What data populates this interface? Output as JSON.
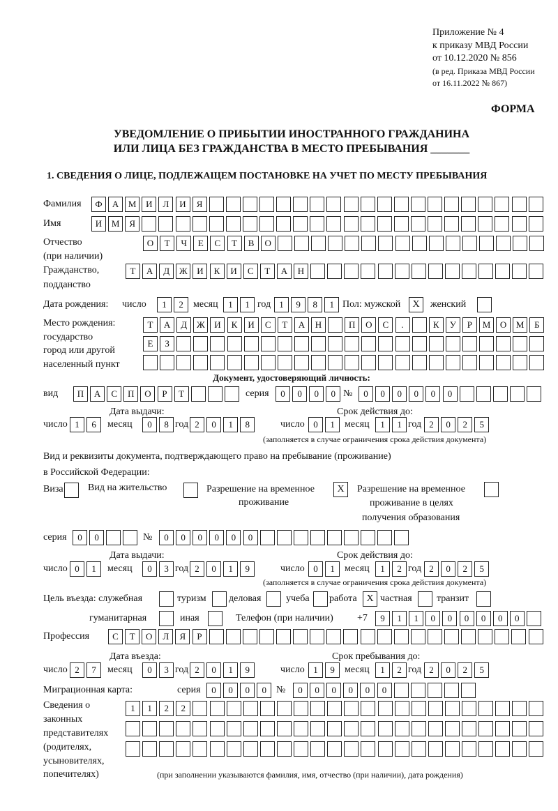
{
  "header": {
    "appendix": "Приложение № 4",
    "order": "к приказу МВД России",
    "order_date": "от 10.12.2020 № 856",
    "revision": "(в ред. Приказа МВД России",
    "revision_date": "от 16.11.2022 № 867)",
    "form_label": "ФОРМА"
  },
  "title": {
    "line1": "УВЕДОМЛЕНИЕ О ПРИБЫТИИ ИНОСТРАННОГО ГРАЖДАНИНА",
    "line2": "ИЛИ ЛИЦА БЕЗ ГРАЖДАНСТВА В МЕСТО ПРЕБЫВАНИЯ _______"
  },
  "section1": {
    "heading": "1. СВЕДЕНИЯ О ЛИЦЕ, ПОДЛЕЖАЩЕМ ПОСТАНОВКЕ НА УЧЕТ ПО МЕСТУ ПРЕБЫВАНИЯ"
  },
  "person": {
    "surname_label": "Фамилия",
    "surname": [
      "Ф",
      "А",
      "М",
      "И",
      "Л",
      "И",
      "Я",
      "",
      "",
      "",
      "",
      "",
      "",
      "",
      "",
      "",
      "",
      "",
      "",
      "",
      "",
      "",
      "",
      "",
      "",
      "",
      ""
    ],
    "name_label": "Имя",
    "name": [
      "И",
      "М",
      "Я",
      "",
      "",
      "",
      "",
      "",
      "",
      "",
      "",
      "",
      "",
      "",
      "",
      "",
      "",
      "",
      "",
      "",
      "",
      "",
      "",
      "",
      "",
      "",
      ""
    ],
    "patronymic_label": "Отчество",
    "patronymic_note": "(при наличии)",
    "patronymic": [
      "О",
      "Т",
      "Ч",
      "Е",
      "С",
      "Т",
      "В",
      "О",
      "",
      "",
      "",
      "",
      "",
      "",
      "",
      "",
      "",
      "",
      "",
      "",
      "",
      "",
      "",
      ""
    ],
    "citizenship_label1": "Гражданство,",
    "citizenship_label2": "подданство",
    "citizenship": [
      "Т",
      "А",
      "Д",
      "Ж",
      "И",
      "К",
      "И",
      "С",
      "Т",
      "А",
      "Н",
      "",
      "",
      "",
      "",
      "",
      "",
      "",
      "",
      "",
      "",
      "",
      "",
      "",
      ""
    ]
  },
  "birth_date": {
    "label": "Дата рождения:",
    "day_label": "число",
    "day": [
      "1",
      "2"
    ],
    "month_label": "месяц",
    "month": [
      "1",
      "1"
    ],
    "year_label": "год",
    "year": [
      "1",
      "9",
      "8",
      "1"
    ],
    "sex_label": "Пол: мужской",
    "male": "X",
    "female_label": "женский",
    "female": ""
  },
  "birth_place": {
    "label1": "Место рождения:",
    "label2": "государство",
    "label3": "город или другой",
    "label4": "населенный пункт",
    "row1": [
      "Т",
      "А",
      "Д",
      "Ж",
      "И",
      "К",
      "И",
      "С",
      "Т",
      "А",
      "Н",
      "",
      "П",
      "О",
      "С",
      ".",
      "",
      "К",
      "У",
      "Р",
      "М",
      "О",
      "М",
      "Б"
    ],
    "row2": [
      "Е",
      "З",
      "",
      "",
      "",
      "",
      "",
      "",
      "",
      "",
      "",
      "",
      "",
      "",
      "",
      "",
      "",
      "",
      "",
      "",
      "",
      "",
      "",
      ""
    ],
    "row3": [
      "",
      "",
      "",
      "",
      "",
      "",
      "",
      "",
      "",
      "",
      "",
      "",
      "",
      "",
      "",
      "",
      "",
      "",
      "",
      "",
      "",
      "",
      "",
      ""
    ]
  },
  "identity_doc": {
    "heading": "Документ, удостоверяющий личность:",
    "type_label": "вид",
    "type": [
      "П",
      "А",
      "С",
      "П",
      "О",
      "Р",
      "Т",
      "",
      "",
      ""
    ],
    "series_label": "серия",
    "series": [
      "0",
      "0",
      "0",
      "0"
    ],
    "number_label": "№",
    "number": [
      "0",
      "0",
      "0",
      "0",
      "0",
      "0",
      "",
      "",
      "",
      "",
      ""
    ],
    "issue_label": "Дата выдачи:",
    "valid_label": "Срок действия до:",
    "day_label": "число",
    "month_label": "месяц",
    "year_label": "год",
    "issue_day": [
      "1",
      "6"
    ],
    "issue_month": [
      "0",
      "8"
    ],
    "issue_year": [
      "2",
      "0",
      "1",
      "8"
    ],
    "valid_day": [
      "0",
      "1"
    ],
    "valid_month": [
      "1",
      "1"
    ],
    "valid_year": [
      "2",
      "0",
      "2",
      "5"
    ],
    "note": "(заполняется в случае ограничения срока действия документа)"
  },
  "stay_doc": {
    "label1": "Вид и реквизиты документа, подтверждающего право на пребывание (проживание)",
    "label2": "в Российской Федерации:",
    "visa_label": "Виза",
    "visa": "",
    "residence_label": "Вид на жительство",
    "residence": "",
    "temp_label1": "Разрешение на временное",
    "temp_label2": "проживание",
    "temp": "X",
    "edu_label1": "Разрешение на временное",
    "edu_label2": "проживание в целях",
    "edu_label3": "получения образования",
    "edu": "",
    "series_label": "серия",
    "series": [
      "0",
      "0",
      "",
      ""
    ],
    "number_label": "№",
    "number": [
      "0",
      "0",
      "0",
      "0",
      "0",
      "0",
      "",
      "",
      "",
      "",
      "",
      "",
      "",
      "",
      ""
    ],
    "issue_label": "Дата выдачи:",
    "valid_label": "Срок действия до:",
    "day_label": "число",
    "month_label": "месяц",
    "year_label": "год",
    "issue_day": [
      "0",
      "1"
    ],
    "issue_month": [
      "0",
      "3"
    ],
    "issue_year": [
      "2",
      "0",
      "1",
      "9"
    ],
    "valid_day": [
      "0",
      "1"
    ],
    "valid_month": [
      "1",
      "2"
    ],
    "valid_year": [
      "2",
      "0",
      "2",
      "5"
    ],
    "note": "(заполняется в случае ограничения срока действия документа)"
  },
  "purpose": {
    "label": "Цель въезда: служебная",
    "official": "",
    "tourism_label": "туризм",
    "tourism": "",
    "business_label": "деловая",
    "business": "",
    "study_label": "учеба",
    "study": "",
    "work_label": "работа",
    "work": "X",
    "private_label": "частная",
    "private": "",
    "transit_label": "транзит",
    "transit": "",
    "humanitarian_label": "гуманитарная",
    "humanitarian": "",
    "other_label": "иная",
    "other": ""
  },
  "phone": {
    "label": "Телефон (при наличии)",
    "prefix": "+7",
    "digits": [
      "9",
      "1",
      "1",
      "0",
      "0",
      "0",
      "0",
      "0",
      "0",
      ""
    ]
  },
  "profession": {
    "label": "Профессия",
    "value": [
      "С",
      "Т",
      "О",
      "Л",
      "Я",
      "Р",
      "",
      "",
      "",
      "",
      "",
      "",
      "",
      "",
      "",
      "",
      "",
      "",
      "",
      "",
      "",
      "",
      "",
      "",
      "",
      ""
    ]
  },
  "entry": {
    "entry_label": "Дата въезда:",
    "stay_label": "Срок пребывания до:",
    "day_label": "число",
    "month_label": "месяц",
    "year_label": "год",
    "entry_day": [
      "2",
      "7"
    ],
    "entry_month": [
      "0",
      "3"
    ],
    "entry_year": [
      "2",
      "0",
      "1",
      "9"
    ],
    "stay_day": [
      "1",
      "9"
    ],
    "stay_month": [
      "1",
      "2"
    ],
    "stay_year": [
      "2",
      "0",
      "2",
      "5"
    ]
  },
  "migration_card": {
    "label": "Миграционная карта:",
    "series_label": "серия",
    "series": [
      "0",
      "0",
      "0",
      "0"
    ],
    "number_label": "№",
    "number": [
      "0",
      "0",
      "0",
      "0",
      "0",
      "0",
      "",
      "",
      "",
      "",
      ""
    ]
  },
  "representatives": {
    "label1": "Сведения о",
    "label2": "законных",
    "label3": "представителях",
    "label4": "(родителях,",
    "label5": "усыновителях,",
    "label6": "попечителях)",
    "row1": [
      "1",
      "1",
      "2",
      "2",
      "",
      "",
      "",
      "",
      "",
      "",
      "",
      "",
      "",
      "",
      "",
      "",
      "",
      "",
      "",
      "",
      "",
      "",
      "",
      "",
      ""
    ],
    "row2": [
      "",
      "",
      "",
      "",
      "",
      "",
      "",
      "",
      "",
      "",
      "",
      "",
      "",
      "",
      "",
      "",
      "",
      "",
      "",
      "",
      "",
      "",
      "",
      "",
      ""
    ],
    "row3": [
      "",
      "",
      "",
      "",
      "",
      "",
      "",
      "",
      "",
      "",
      "",
      "",
      "",
      "",
      "",
      "",
      "",
      "",
      "",
      "",
      "",
      "",
      "",
      "",
      ""
    ],
    "note": "(при заполнении указываются фамилия, имя, отчество (при наличии), дата рождения)"
  }
}
